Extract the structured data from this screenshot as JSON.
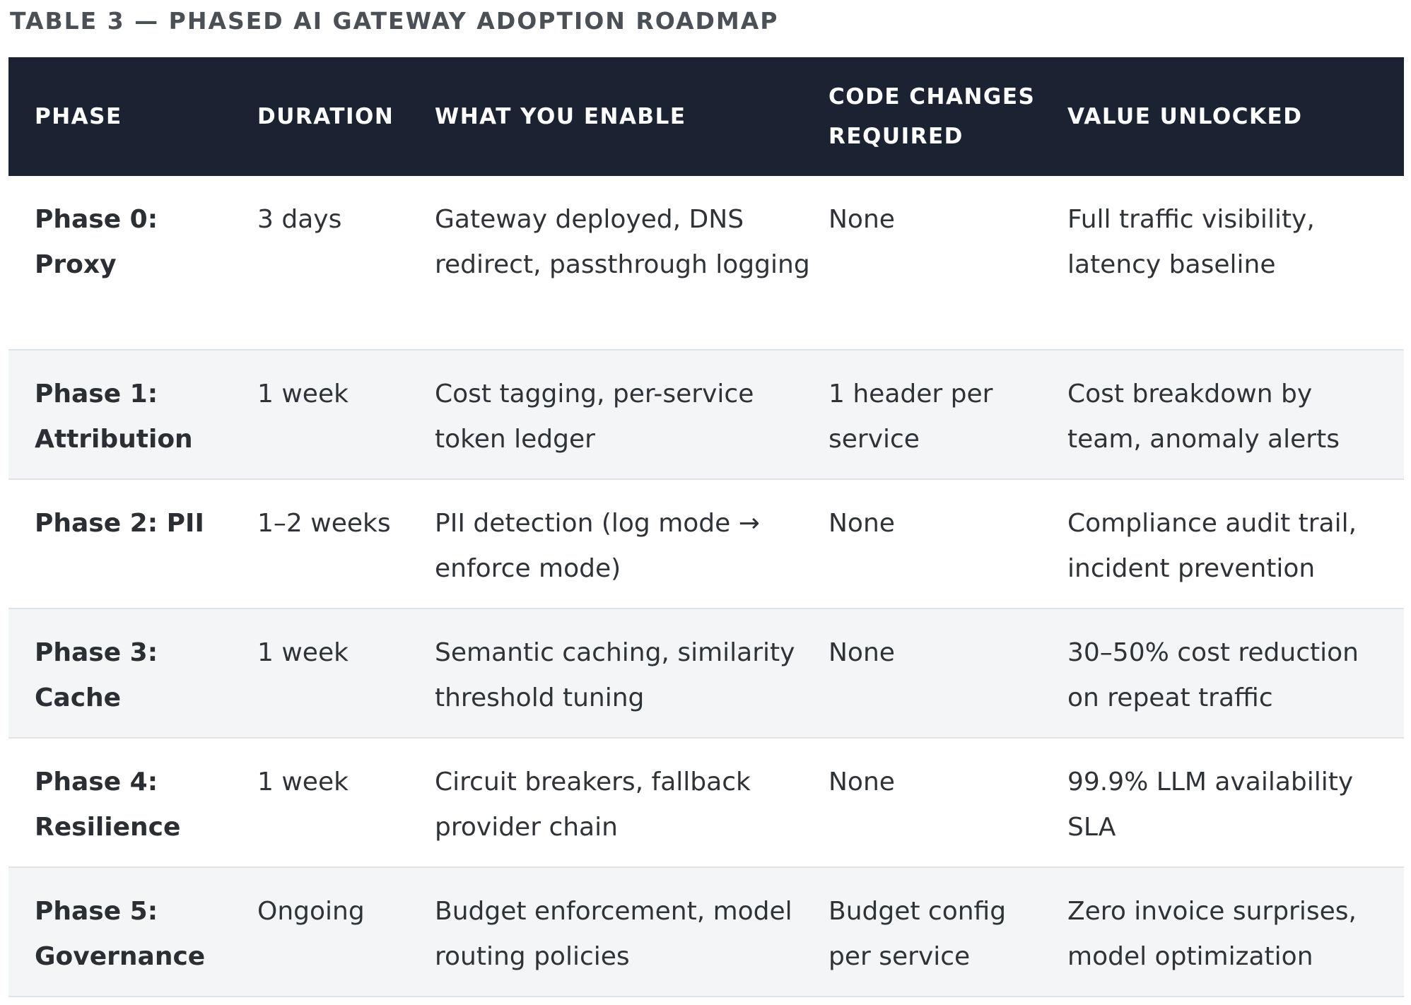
{
  "caption": "TABLE 3 — PHASED AI GATEWAY ADOPTION ROADMAP",
  "table": {
    "headers": {
      "phase": "PHASE",
      "duration": "DURATION",
      "enable": "WHAT YOU ENABLE",
      "code_changes": "CODE CHANGES REQUIRED",
      "value": "VALUE UNLOCKED"
    },
    "rows": [
      {
        "phase": "Phase 0: Proxy",
        "duration": "3 days",
        "enable": "Gateway deployed, DNS redirect, passthrough logging",
        "code_changes": "None",
        "value": "Full traffic visibility, latency baseline"
      },
      {
        "phase": "Phase 1: Attribution",
        "duration": "1 week",
        "enable": "Cost tagging, per-service token ledger",
        "code_changes": "1 header per service",
        "value": "Cost breakdown by team, anomaly alerts"
      },
      {
        "phase": "Phase 2: PII",
        "duration": "1–2 weeks",
        "enable": "PII detection (log mode → enforce mode)",
        "code_changes": "None",
        "value": "Compliance audit trail, incident prevention"
      },
      {
        "phase": "Phase 3: Cache",
        "duration": "1 week",
        "enable": "Semantic caching, similarity threshold tuning",
        "code_changes": "None",
        "value": "30–50% cost reduction on repeat traffic"
      },
      {
        "phase": "Phase 4: Resilience",
        "duration": "1 week",
        "enable": "Circuit breakers, fallback provider chain",
        "code_changes": "None",
        "value": "99.9% LLM availability SLA"
      },
      {
        "phase": "Phase 5: Governance",
        "duration": "Ongoing",
        "enable": "Budget enforcement, model routing policies",
        "code_changes": "Budget config per service",
        "value": "Zero invoice surprises, model optimization"
      }
    ]
  },
  "colors": {
    "header_bg": "#1b2333",
    "stripe_bg": "#f3f5f7",
    "divider": "#dfe2e6"
  }
}
